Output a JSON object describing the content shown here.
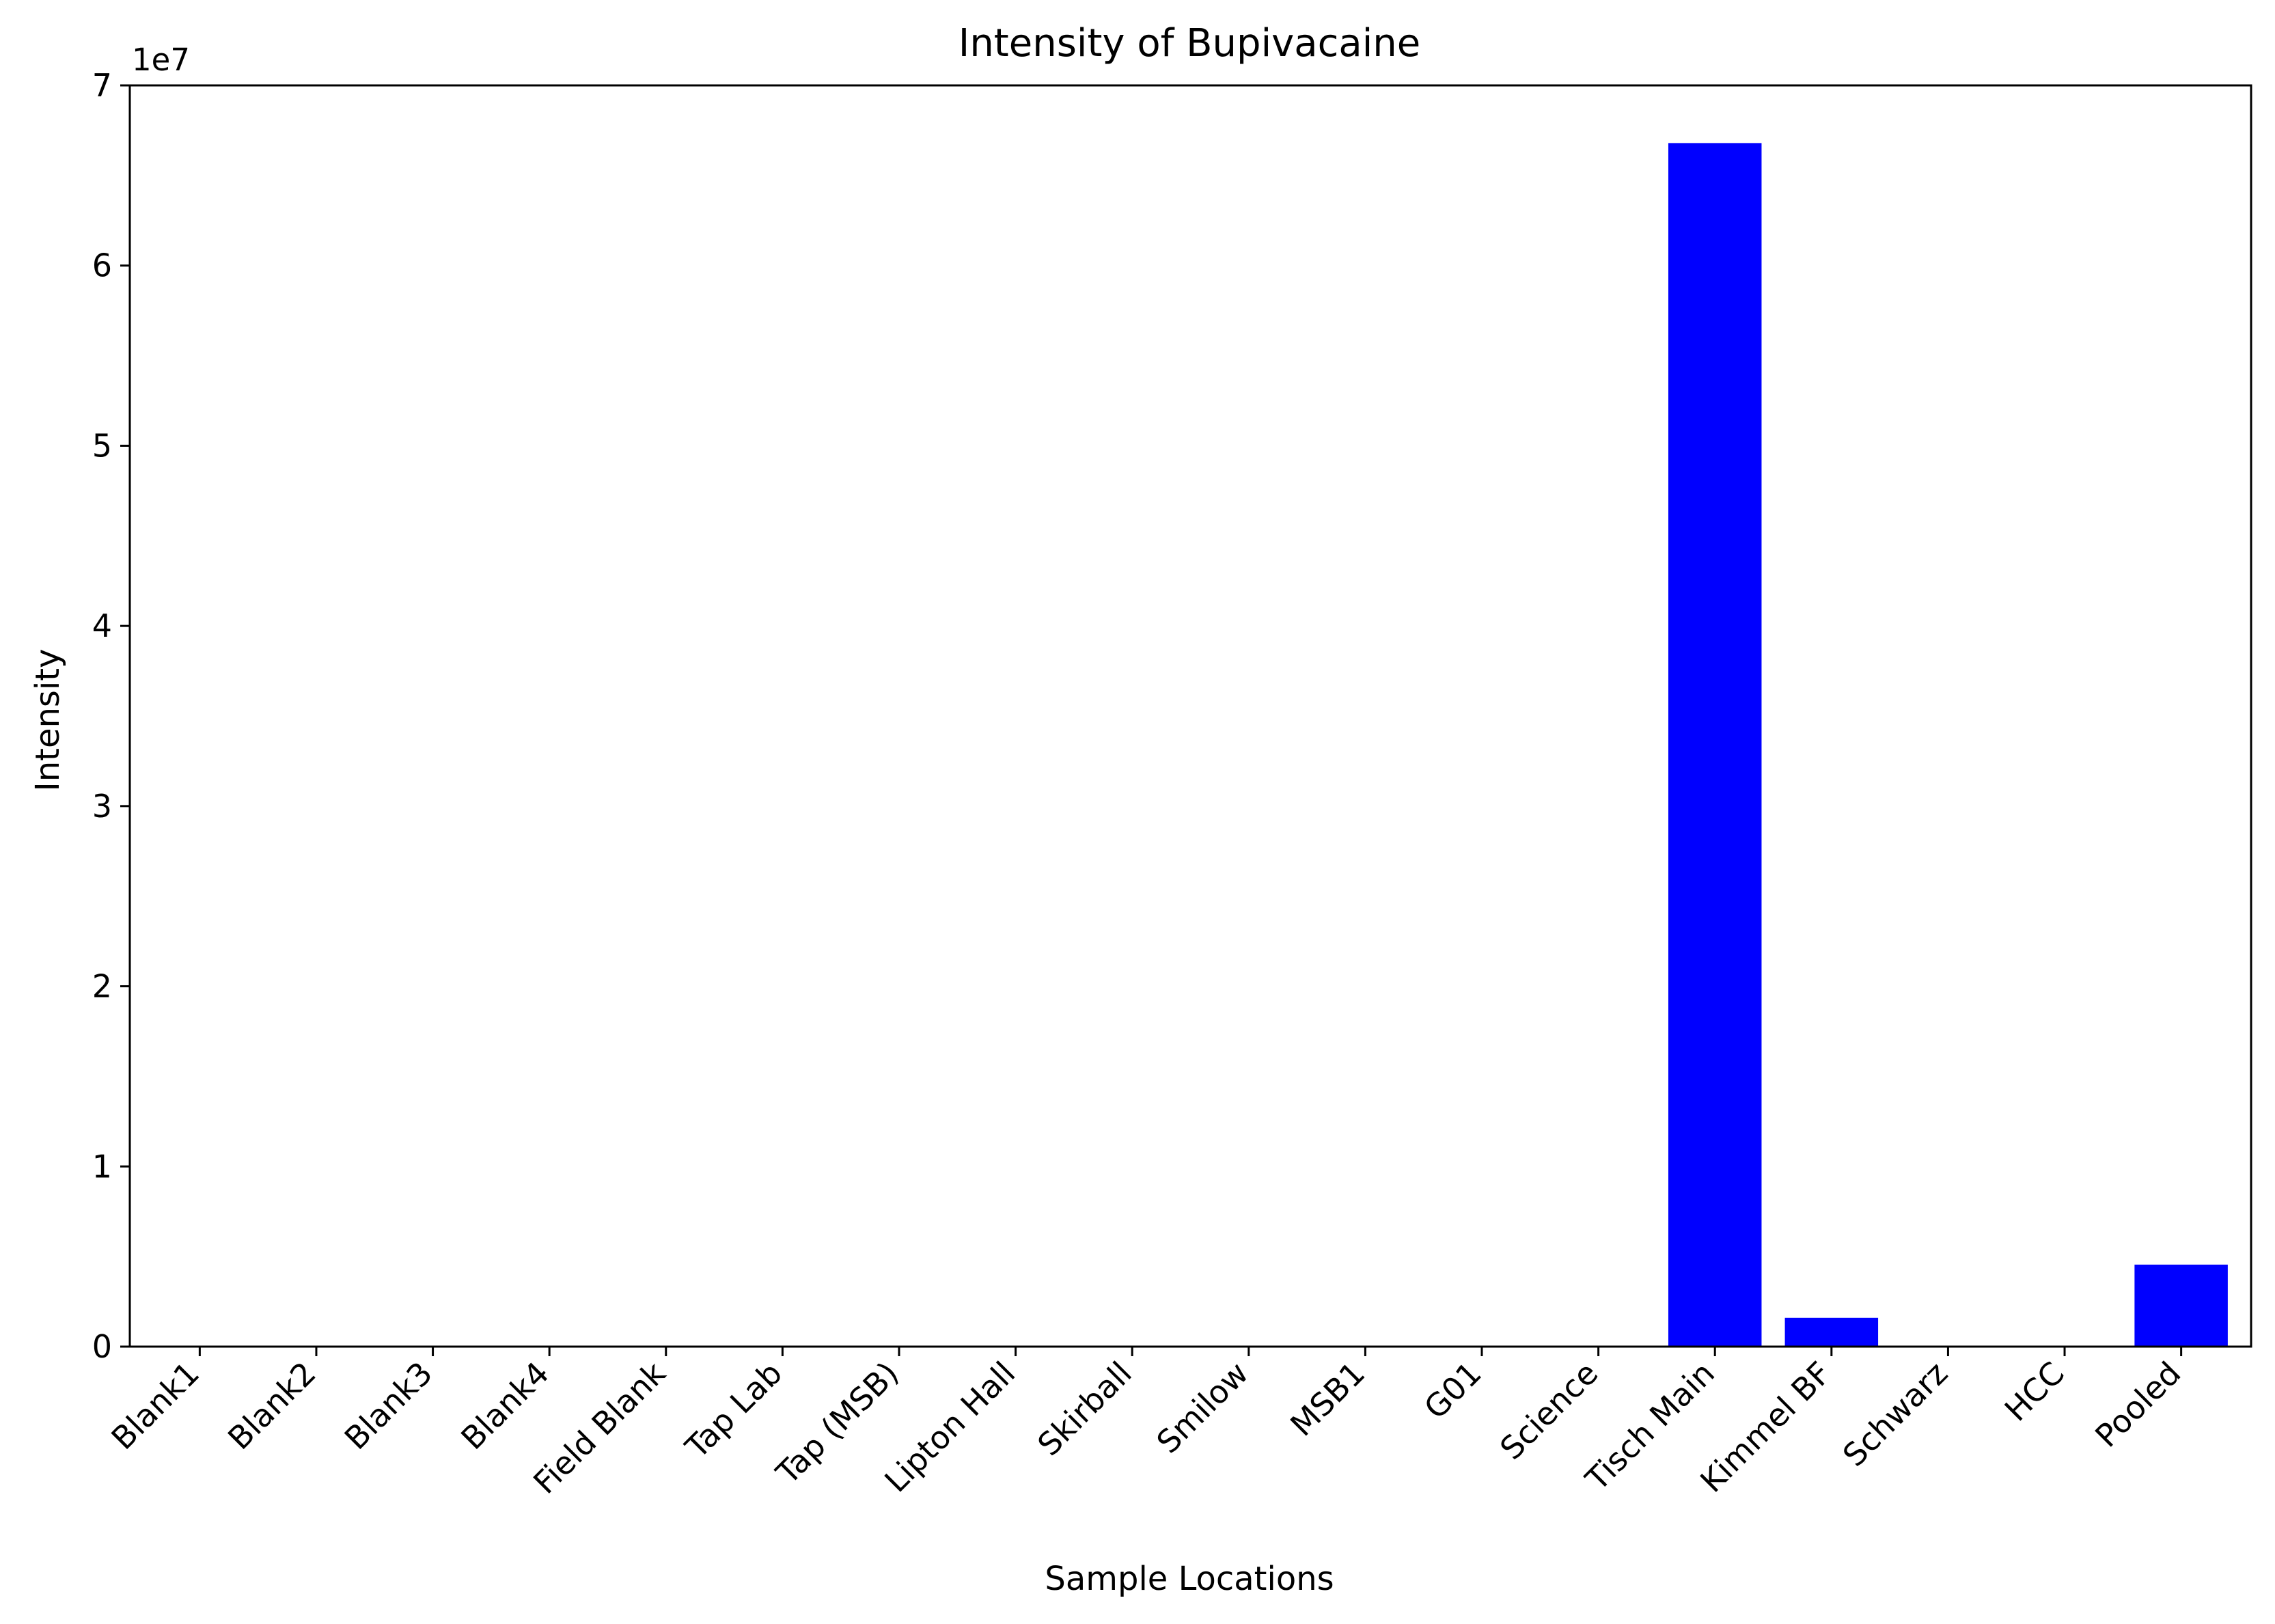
{
  "chart_data": {
    "type": "bar",
    "title": "Intensity of Bupivacaine",
    "xlabel": "Sample Locations",
    "ylabel": "Intensity",
    "y_offset_label": "1e7",
    "y_scale": 10000000,
    "ylim": [
      0,
      70000000
    ],
    "yticks": [
      0,
      10000000,
      20000000,
      30000000,
      40000000,
      50000000,
      60000000,
      70000000
    ],
    "ytick_labels": [
      "0",
      "1",
      "2",
      "3",
      "4",
      "5",
      "6",
      "7"
    ],
    "grid": false,
    "bar_color": "#0000ff",
    "categories": [
      "Blank1",
      "Blank2",
      "Blank3",
      "Blank4",
      "Field Blank",
      "Tap Lab",
      "Tap (MSB)",
      "Lipton Hall",
      "Skirball",
      "Smilow",
      "MSB1",
      "G01",
      "Science",
      "Tisch Main",
      "Kimmel BF",
      "Schwarz",
      "HCC",
      "Pooled"
    ],
    "values": [
      0,
      0,
      0,
      0,
      0,
      0,
      0,
      0,
      0,
      0,
      0,
      0,
      0,
      66800000,
      1600000,
      0,
      0,
      4550000
    ]
  }
}
